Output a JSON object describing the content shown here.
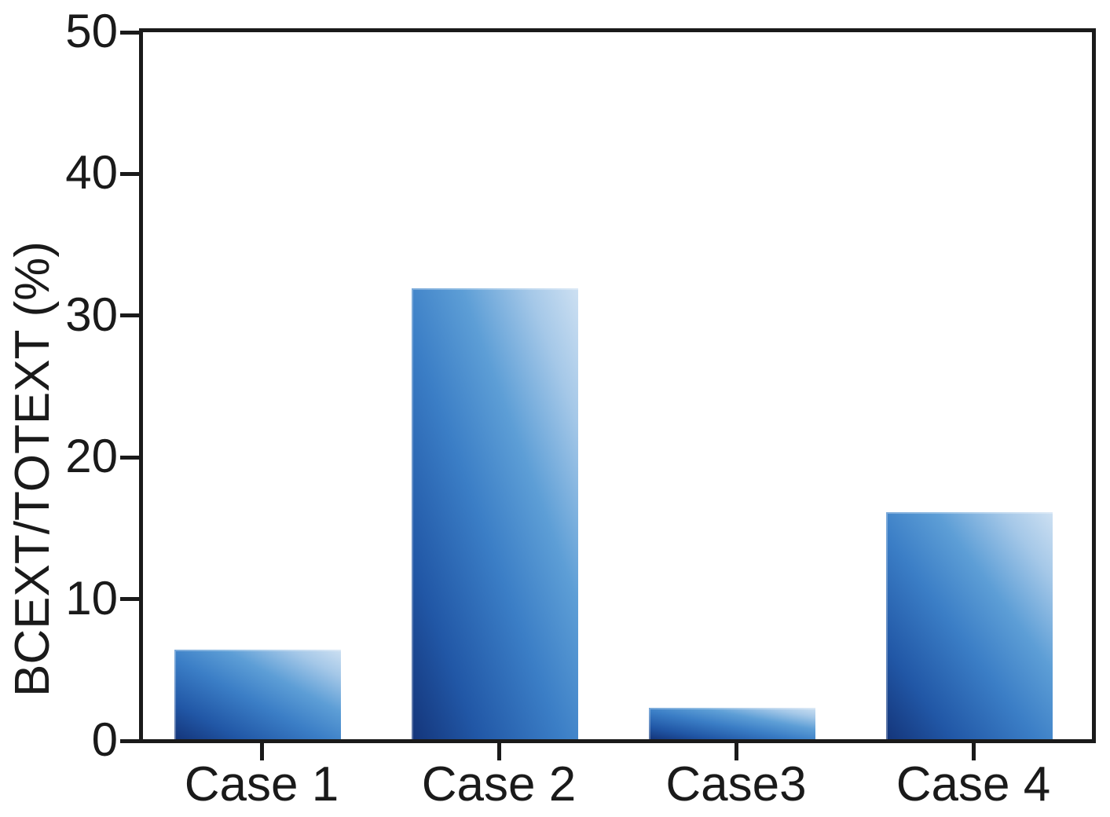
{
  "figure": {
    "background": "#ffffff",
    "axis_color": "#1a1a1a",
    "text_color": "#1a1a1a"
  },
  "chart_data": {
    "type": "bar",
    "title": "",
    "xlabel": "",
    "ylabel": "BCEXT/TOTEXT (%)",
    "categories": [
      "Case 1",
      "Case 2",
      "Case3",
      "Case 4"
    ],
    "values": [
      6.3,
      31.8,
      2.2,
      16.0
    ],
    "ylim": [
      0,
      50
    ],
    "yticks": [
      0,
      10,
      20,
      30,
      40,
      50
    ],
    "grid": false,
    "legend": null,
    "bar_width_fraction": 0.7,
    "bar_gradient": {
      "direction": "to top right",
      "stops": [
        "#14357a 0%",
        "#2157a6 20%",
        "#3b7ec6 45%",
        "#5d9ed6 65%",
        "#a5c8e8 85%",
        "#cde0f2 100%"
      ]
    }
  }
}
